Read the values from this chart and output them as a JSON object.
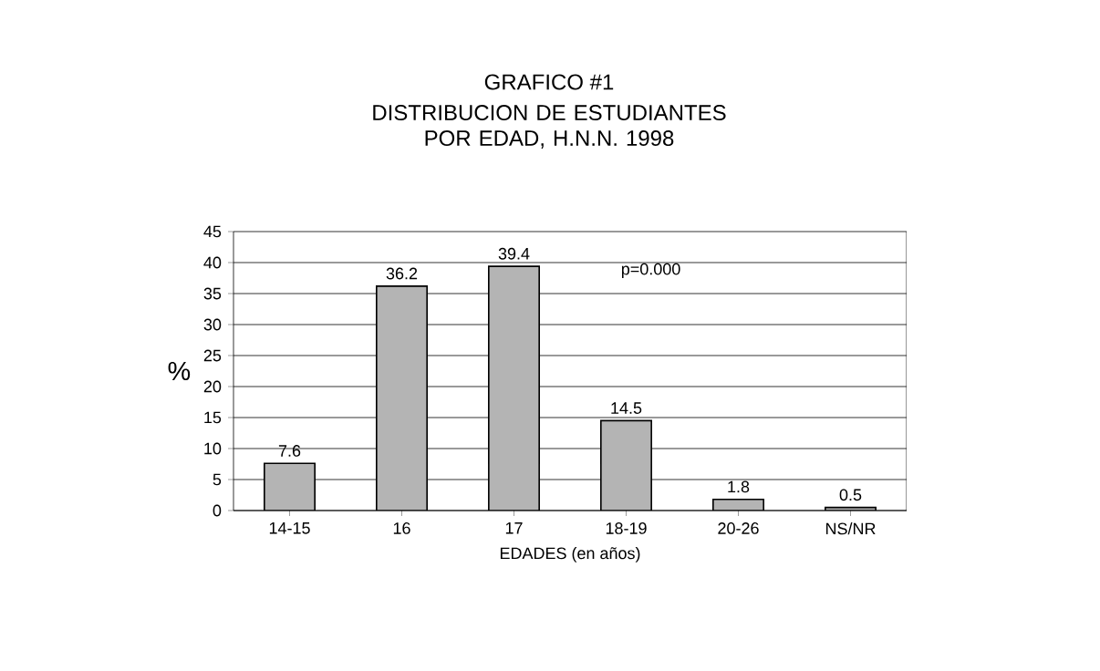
{
  "chart_data": {
    "type": "bar",
    "title": "GRAFICO #1",
    "subtitle": "DISTRIBUCION DE ESTUDIANTES POR EDAD, H.N.N. 1998",
    "xlabel": "EDADES (en años)",
    "ylabel": "%",
    "categories": [
      "14-15",
      "16",
      "17",
      "18-19",
      "20-26",
      "NS/NR"
    ],
    "values": [
      7.6,
      36.2,
      39.4,
      14.5,
      1.8,
      0.5
    ],
    "color": "#b4b4b4",
    "ylim": [
      0,
      45
    ],
    "yticks": [
      0,
      5,
      10,
      15,
      20,
      25,
      30,
      35,
      40,
      45
    ],
    "grid": "y",
    "data_labels": true,
    "annotations": [
      "p=0.000"
    ]
  }
}
